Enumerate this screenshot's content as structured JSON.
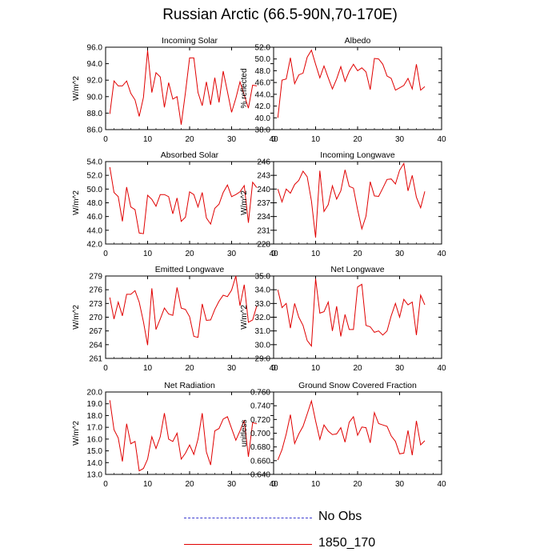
{
  "page": {
    "title": "Russian Arctic (66.5-90N,70-170E)"
  },
  "legend": [
    {
      "label": "No Obs",
      "color": "#3a3ad0",
      "style": "dashed"
    },
    {
      "label": "1850_170",
      "color": "#e00000",
      "style": "solid"
    }
  ],
  "chart_data": [
    {
      "type": "line",
      "title": "Incoming Solar",
      "ylabel": "W/m^2",
      "xlabel": "",
      "xlim": [
        0,
        40
      ],
      "xticks": [
        "0",
        "10",
        "20",
        "30",
        "40"
      ],
      "ylim": [
        86.0,
        96.0
      ],
      "yticks": [
        "86.0",
        "88.0",
        "90.0",
        "92.0",
        "94.0",
        "96.0"
      ],
      "series": [
        {
          "color": "#e00000",
          "x": [
            1,
            2,
            3,
            4,
            5,
            6,
            7,
            8,
            9,
            10,
            11,
            12,
            13,
            14,
            15,
            16,
            17,
            18,
            19,
            20,
            21,
            22,
            23,
            24,
            25,
            26,
            27,
            28,
            29,
            30,
            31,
            32,
            33,
            34,
            35,
            36
          ],
          "y": [
            87.9,
            91.9,
            91.3,
            91.3,
            91.9,
            90.4,
            89.6,
            87.6,
            89.9,
            95.6,
            90.5,
            92.9,
            92.4,
            88.7,
            91.7,
            89.7,
            90.0,
            86.6,
            90.5,
            94.7,
            94.7,
            90.5,
            88.9,
            91.8,
            89.0,
            92.3,
            89.3,
            93.1,
            90.6,
            88.1,
            89.8,
            91.8,
            90.2,
            88.6,
            91.4,
            91.3
          ]
        }
      ]
    },
    {
      "type": "line",
      "title": "Albedo",
      "ylabel": "% reflected",
      "xlabel": "",
      "xlim": [
        0,
        40
      ],
      "xticks": [
        "0",
        "10",
        "20",
        "30",
        "40"
      ],
      "ylim": [
        38.0,
        52.0
      ],
      "yticks": [
        "38.0",
        "40.0",
        "42.0",
        "44.0",
        "46.0",
        "48.0",
        "50.0",
        "52.0"
      ],
      "series": [
        {
          "color": "#e00000",
          "x": [
            1,
            2,
            3,
            4,
            5,
            6,
            7,
            8,
            9,
            10,
            11,
            12,
            13,
            14,
            15,
            16,
            17,
            18,
            19,
            20,
            21,
            22,
            23,
            24,
            25,
            26,
            27,
            28,
            29,
            30,
            31,
            32,
            33,
            34,
            35,
            36
          ],
          "y": [
            40.0,
            46.4,
            46.6,
            50.2,
            45.8,
            47.3,
            47.6,
            50.3,
            51.5,
            49.1,
            46.8,
            48.8,
            46.8,
            44.9,
            46.6,
            48.7,
            46.2,
            47.9,
            49.1,
            48.0,
            48.5,
            47.8,
            44.8,
            50.1,
            50.0,
            49.1,
            47.1,
            46.7,
            44.7,
            45.1,
            45.5,
            46.7,
            44.9,
            49.1,
            44.7,
            45.3
          ]
        }
      ]
    },
    {
      "type": "line",
      "title": "Absorbed Solar",
      "ylabel": "W/m^2",
      "xlabel": "",
      "xlim": [
        0,
        40
      ],
      "xticks": [
        "0",
        "10",
        "20",
        "30",
        "40"
      ],
      "ylim": [
        42.0,
        54.0
      ],
      "yticks": [
        "42.0",
        "44.0",
        "46.0",
        "48.0",
        "50.0",
        "52.0",
        "54.0"
      ],
      "series": [
        {
          "color": "#e00000",
          "x": [
            1,
            2,
            3,
            4,
            5,
            6,
            7,
            8,
            9,
            10,
            11,
            12,
            13,
            14,
            15,
            16,
            17,
            18,
            19,
            20,
            21,
            22,
            23,
            24,
            25,
            26,
            27,
            28,
            29,
            30,
            31,
            32,
            33,
            34,
            35,
            36
          ],
          "y": [
            53.2,
            49.5,
            48.9,
            45.3,
            50.3,
            47.4,
            47.0,
            43.6,
            43.5,
            49.1,
            48.5,
            47.5,
            49.2,
            49.2,
            48.9,
            46.4,
            48.7,
            45.3,
            45.9,
            49.6,
            49.2,
            47.4,
            49.5,
            45.8,
            44.9,
            47.2,
            47.8,
            49.5,
            50.6,
            48.9,
            49.2,
            49.6,
            50.5,
            45.1,
            51.0,
            50.2
          ]
        }
      ]
    },
    {
      "type": "line",
      "title": "Incoming Longwave",
      "ylabel": "W/m^2",
      "xlabel": "",
      "xlim": [
        0,
        40
      ],
      "xticks": [
        "0",
        "10",
        "20",
        "30",
        "40"
      ],
      "ylim": [
        228,
        246
      ],
      "yticks": [
        "228",
        "231",
        "234",
        "237",
        "240",
        "243",
        "246"
      ],
      "series": [
        {
          "color": "#e00000",
          "x": [
            1,
            2,
            3,
            4,
            5,
            6,
            7,
            8,
            9,
            10,
            11,
            12,
            13,
            14,
            15,
            16,
            17,
            18,
            19,
            20,
            21,
            22,
            23,
            24,
            25,
            26,
            27,
            28,
            29,
            30,
            31,
            32,
            33,
            34,
            35,
            36
          ],
          "y": [
            240.0,
            237.2,
            240.0,
            239.1,
            241.0,
            241.9,
            243.9,
            242.7,
            237.4,
            229.4,
            244.0,
            235.1,
            236.6,
            240.7,
            237.8,
            239.6,
            244.2,
            240.6,
            240.2,
            235.5,
            231.3,
            234.1,
            241.6,
            238.5,
            238.4,
            240.2,
            242.1,
            242.2,
            241.1,
            244.1,
            245.6,
            239.6,
            243.0,
            238.2,
            235.9,
            239.5
          ]
        }
      ]
    },
    {
      "type": "line",
      "title": "Emitted Longwave",
      "ylabel": "W/m^2",
      "xlabel": "",
      "xlim": [
        0,
        40
      ],
      "xticks": [
        "0",
        "10",
        "20",
        "30",
        "40"
      ],
      "ylim": [
        261,
        279
      ],
      "yticks": [
        "261",
        "264",
        "267",
        "270",
        "273",
        "276",
        "279"
      ],
      "series": [
        {
          "color": "#e00000",
          "x": [
            1,
            2,
            3,
            4,
            5,
            6,
            7,
            8,
            9,
            10,
            11,
            12,
            13,
            14,
            15,
            16,
            17,
            18,
            19,
            20,
            21,
            22,
            23,
            24,
            25,
            26,
            27,
            28,
            29,
            30,
            31,
            32,
            33,
            34,
            35,
            36
          ],
          "y": [
            274.3,
            269.6,
            273.3,
            270.3,
            275.0,
            275.0,
            275.8,
            273.3,
            269.0,
            263.9,
            276.3,
            267.3,
            269.6,
            272.0,
            270.7,
            270.4,
            276.5,
            272.0,
            271.7,
            270.1,
            265.8,
            265.6,
            272.9,
            269.3,
            269.4,
            271.7,
            273.5,
            274.8,
            274.5,
            275.9,
            279.0,
            272.5,
            277.1,
            268.9,
            269.4,
            272.5
          ]
        }
      ]
    },
    {
      "type": "line",
      "title": "Net Longwave",
      "ylabel": "W/m^2",
      "xlabel": "",
      "xlim": [
        0,
        40
      ],
      "xticks": [
        "0",
        "10",
        "20",
        "30",
        "40"
      ],
      "ylim": [
        29.0,
        35.0
      ],
      "yticks": [
        "29.0",
        "30.0",
        "31.0",
        "32.0",
        "33.0",
        "34.0",
        "35.0"
      ],
      "series": [
        {
          "color": "#e00000",
          "x": [
            1,
            2,
            3,
            4,
            5,
            6,
            7,
            8,
            9,
            10,
            11,
            12,
            13,
            14,
            15,
            16,
            17,
            18,
            19,
            20,
            21,
            22,
            23,
            24,
            25,
            26,
            27,
            28,
            29,
            30,
            31,
            32,
            33,
            34,
            35,
            36
          ],
          "y": [
            34.0,
            32.7,
            33.0,
            31.2,
            33.0,
            32.0,
            31.4,
            30.3,
            29.9,
            34.8,
            32.3,
            32.4,
            33.1,
            31.0,
            32.8,
            30.6,
            32.2,
            31.1,
            31.1,
            34.2,
            34.4,
            31.4,
            31.3,
            30.9,
            31.0,
            30.7,
            31.0,
            32.1,
            33.0,
            32.0,
            33.3,
            32.9,
            33.1,
            30.7,
            33.6,
            32.9
          ]
        }
      ]
    },
    {
      "type": "line",
      "title": "Net Radiation",
      "ylabel": "W/m^2",
      "xlabel": "",
      "xlim": [
        0,
        40
      ],
      "xticks": [
        "0",
        "10",
        "20",
        "30",
        "40"
      ],
      "ylim": [
        13.0,
        20.0
      ],
      "yticks": [
        "13.0",
        "14.0",
        "15.0",
        "16.0",
        "17.0",
        "18.0",
        "19.0",
        "20.0"
      ],
      "series": [
        {
          "color": "#e00000",
          "x": [
            1,
            2,
            3,
            4,
            5,
            6,
            7,
            8,
            9,
            10,
            11,
            12,
            13,
            14,
            15,
            16,
            17,
            18,
            19,
            20,
            21,
            22,
            23,
            24,
            25,
            26,
            27,
            28,
            29,
            30,
            31,
            32,
            33,
            34,
            35,
            36
          ],
          "y": [
            19.3,
            16.8,
            16.1,
            14.1,
            17.3,
            15.6,
            15.8,
            13.3,
            13.5,
            14.3,
            16.2,
            15.2,
            16.2,
            18.2,
            16.0,
            15.8,
            16.5,
            14.3,
            14.8,
            15.5,
            14.7,
            16.0,
            18.2,
            14.9,
            13.8,
            16.7,
            16.9,
            17.7,
            17.9,
            16.9,
            15.9,
            16.7,
            17.6,
            14.5,
            17.4,
            17.3
          ]
        }
      ]
    },
    {
      "type": "line",
      "title": "Ground Snow Covered Fraction",
      "ylabel": "unitless",
      "xlabel": "",
      "xlim": [
        0,
        40
      ],
      "xticks": [
        "0",
        "10",
        "20",
        "30",
        "40"
      ],
      "ylim": [
        0.64,
        0.76
      ],
      "yticks": [
        "0.640",
        "0.660",
        "0.680",
        "0.700",
        "0.720",
        "0.740",
        "0.760"
      ],
      "series": [
        {
          "color": "#e00000",
          "x": [
            1,
            2,
            3,
            4,
            5,
            6,
            7,
            8,
            9,
            10,
            11,
            12,
            13,
            14,
            15,
            16,
            17,
            18,
            19,
            20,
            21,
            22,
            23,
            24,
            25,
            26,
            27,
            28,
            29,
            30,
            31,
            32,
            33,
            34,
            35,
            36
          ],
          "y": [
            0.661,
            0.676,
            0.699,
            0.727,
            0.685,
            0.699,
            0.71,
            0.728,
            0.747,
            0.718,
            0.691,
            0.712,
            0.703,
            0.698,
            0.699,
            0.708,
            0.687,
            0.716,
            0.724,
            0.697,
            0.709,
            0.708,
            0.686,
            0.73,
            0.714,
            0.712,
            0.71,
            0.696,
            0.688,
            0.67,
            0.671,
            0.704,
            0.668,
            0.718,
            0.683,
            0.689
          ]
        }
      ]
    }
  ]
}
